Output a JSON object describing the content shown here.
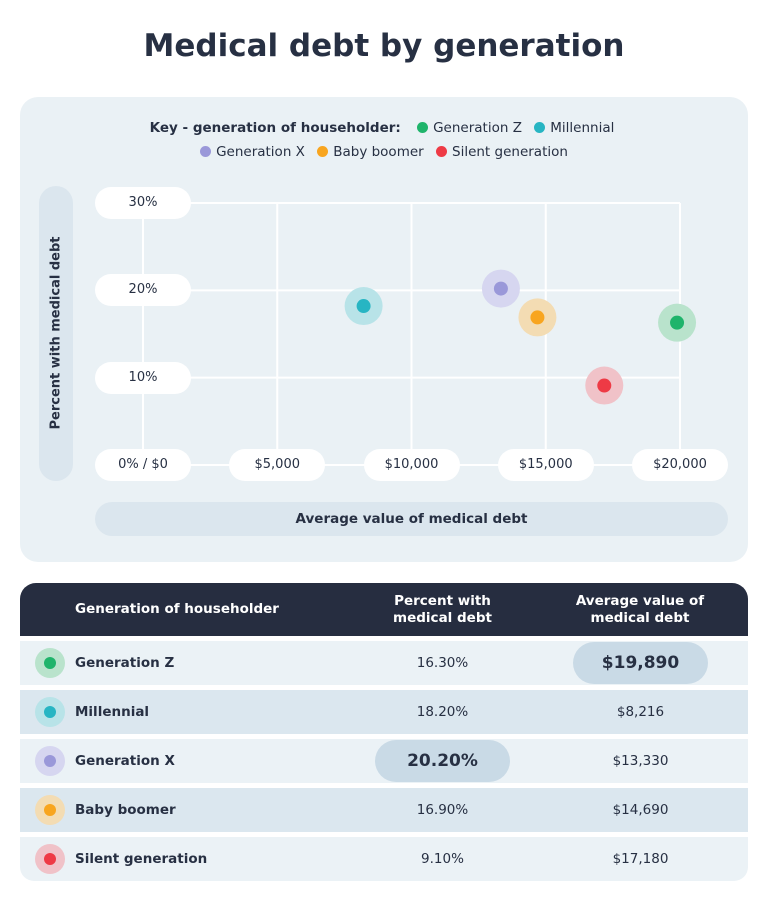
{
  "title": "Medical debt by generation",
  "legend": {
    "label": "Key - generation of householder:"
  },
  "chart_data": {
    "type": "scatter",
    "title": "Medical debt by generation",
    "xlabel": "Average value of medical debt",
    "ylabel": "Percent with medical debt",
    "xlim": [
      0,
      20000
    ],
    "ylim": [
      0,
      30
    ],
    "x_ticks": [
      0,
      5000,
      10000,
      15000,
      20000
    ],
    "x_tick_labels": [
      "0% / $0",
      "$5,000",
      "$10,000",
      "$15,000",
      "$20,000"
    ],
    "y_ticks": [
      10,
      20,
      30
    ],
    "y_tick_labels": [
      "10%",
      "20%",
      "30%"
    ],
    "grid": true,
    "legend_position": "top",
    "series": [
      {
        "name": "Generation Z",
        "x": 19890,
        "y": 16.3,
        "color": "#1fb46b",
        "halo": "#b9e3cc"
      },
      {
        "name": "Millennial",
        "x": 8216,
        "y": 18.2,
        "color": "#27b5c3",
        "halo": "#b8e3e8"
      },
      {
        "name": "Generation X",
        "x": 13330,
        "y": 20.2,
        "color": "#9a98d9",
        "halo": "#d6d6f0"
      },
      {
        "name": "Baby boomer",
        "x": 14690,
        "y": 16.9,
        "color": "#f8a51f",
        "halo": "#f3dcb3"
      },
      {
        "name": "Silent generation",
        "x": 17180,
        "y": 9.1,
        "color": "#ee3a45",
        "halo": "#f0c2c8"
      }
    ]
  },
  "table": {
    "headers": [
      "Generation of householder",
      "Percent with medical debt",
      "Average value of medical debt"
    ],
    "rows": [
      {
        "name": "Generation Z",
        "percent": "16.30%",
        "value": "$19,890",
        "highlight": "value"
      },
      {
        "name": "Millennial",
        "percent": "18.20%",
        "value": "$8,216"
      },
      {
        "name": "Generation X",
        "percent": "20.20%",
        "value": "$13,330",
        "highlight": "percent"
      },
      {
        "name": "Baby boomer",
        "percent": "16.90%",
        "value": "$14,690"
      },
      {
        "name": "Silent generation",
        "percent": "9.10%",
        "value": "$17,180"
      }
    ]
  }
}
